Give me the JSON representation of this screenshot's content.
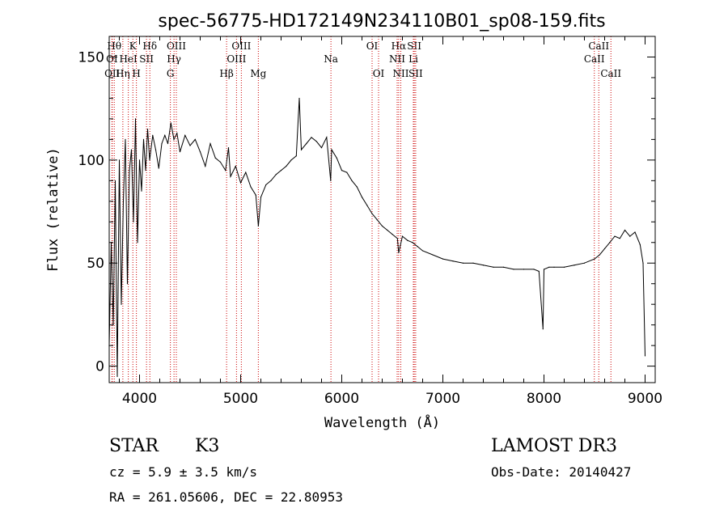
{
  "chart_data": {
    "type": "line",
    "title": "spec-56775-HD172149N234110B01_sp08-159.fits",
    "xlabel": "Wavelength (Å)",
    "ylabel": "Flux (relative)",
    "xlim": [
      3700,
      9100
    ],
    "ylim": [
      -8,
      160
    ],
    "xticks": [
      4000,
      5000,
      6000,
      7000,
      8000,
      9000
    ],
    "yticks": [
      0,
      50,
      100,
      150
    ],
    "series": [
      {
        "name": "flux",
        "x": [
          3700,
          3720,
          3740,
          3760,
          3780,
          3800,
          3820,
          3840,
          3860,
          3880,
          3900,
          3920,
          3940,
          3960,
          3980,
          4000,
          4020,
          4040,
          4060,
          4080,
          4100,
          4130,
          4160,
          4190,
          4220,
          4250,
          4280,
          4310,
          4340,
          4370,
          4400,
          4450,
          4500,
          4550,
          4600,
          4650,
          4700,
          4750,
          4800,
          4850,
          4880,
          4900,
          4950,
          5000,
          5050,
          5100,
          5150,
          5175,
          5200,
          5250,
          5300,
          5350,
          5400,
          5450,
          5500,
          5550,
          5580,
          5600,
          5650,
          5700,
          5750,
          5800,
          5850,
          5890,
          5900,
          5950,
          6000,
          6050,
          6100,
          6150,
          6200,
          6250,
          6300,
          6350,
          6400,
          6450,
          6500,
          6550,
          6563,
          6600,
          6650,
          6700,
          6750,
          6800,
          6900,
          7000,
          7100,
          7200,
          7300,
          7400,
          7500,
          7600,
          7700,
          7800,
          7900,
          7950,
          7990,
          8000,
          8050,
          8100,
          8200,
          8300,
          8400,
          8500,
          8550,
          8600,
          8650,
          8700,
          8750,
          8800,
          8850,
          8900,
          8950,
          8980,
          9000
        ],
        "values": [
          10,
          60,
          20,
          90,
          -5,
          100,
          30,
          80,
          110,
          40,
          95,
          105,
          70,
          120,
          60,
          100,
          85,
          110,
          95,
          115,
          100,
          112,
          105,
          96,
          108,
          112,
          108,
          118,
          110,
          113,
          104,
          112,
          107,
          110,
          104,
          97,
          108,
          101,
          99,
          95,
          106,
          92,
          97,
          89,
          94,
          87,
          83,
          68,
          82,
          88,
          90,
          93,
          95,
          97,
          100,
          102,
          130,
          105,
          108,
          111,
          109,
          106,
          111,
          90,
          105,
          101,
          95,
          94,
          90,
          87,
          82,
          78,
          74,
          71,
          68,
          66,
          64,
          62,
          55,
          63,
          61,
          60,
          58,
          56,
          54,
          52,
          51,
          50,
          50,
          49,
          48,
          48,
          47,
          47,
          47,
          46,
          18,
          47,
          48,
          48,
          48,
          49,
          50,
          52,
          54,
          57,
          60,
          63,
          62,
          66,
          63,
          65,
          59,
          50,
          5
        ]
      }
    ],
    "line_markers": [
      {
        "label": "OI",
        "x": 3727,
        "row": 1
      },
      {
        "label": "Hθ",
        "x": 3750,
        "row": 0
      },
      {
        "label": "OII",
        "x": 3730,
        "row": 2
      },
      {
        "label": "Hη",
        "x": 3835,
        "row": 2
      },
      {
        "label": "HeI",
        "x": 3889,
        "row": 1
      },
      {
        "label": "K",
        "x": 3934,
        "row": 0
      },
      {
        "label": "H",
        "x": 3969,
        "row": 2
      },
      {
        "label": "SII",
        "x": 4069,
        "row": 1
      },
      {
        "label": "Hδ",
        "x": 4102,
        "row": 0
      },
      {
        "label": "OIII",
        "x": 4364,
        "row": 0
      },
      {
        "label": "Hγ",
        "x": 4341,
        "row": 1
      },
      {
        "label": "G",
        "x": 4305,
        "row": 2
      },
      {
        "label": "Hβ",
        "x": 4861,
        "row": 2
      },
      {
        "label": "OIII",
        "x": 5007,
        "row": 0
      },
      {
        "label": "OIII",
        "x": 4959,
        "row": 1
      },
      {
        "label": "Mg",
        "x": 5175,
        "row": 2
      },
      {
        "label": "Na",
        "x": 5893,
        "row": 1
      },
      {
        "label": "OI",
        "x": 6300,
        "row": 0
      },
      {
        "label": "OI",
        "x": 6364,
        "row": 2
      },
      {
        "label": "Hα",
        "x": 6563,
        "row": 0
      },
      {
        "label": "NII",
        "x": 6548,
        "row": 1
      },
      {
        "label": "NII",
        "x": 6584,
        "row": 2
      },
      {
        "label": "SII",
        "x": 6717,
        "row": 0
      },
      {
        "label": "Li",
        "x": 6708,
        "row": 1
      },
      {
        "label": "SII",
        "x": 6731,
        "row": 2
      },
      {
        "label": "CaII",
        "x": 8542,
        "row": 0
      },
      {
        "label": "CaII",
        "x": 8498,
        "row": 1
      },
      {
        "label": "CaII",
        "x": 8662,
        "row": 2
      }
    ]
  },
  "info": {
    "object_class": "STAR",
    "subclass": "K3",
    "cz": "cz = 5.9 ± 3.5 km/s",
    "coords": "RA = 261.05606, DEC =  22.80953",
    "survey": "LAMOST DR3",
    "obs_date": "Obs-Date: 20140427"
  },
  "colors": {
    "marker_line": "#cc0000",
    "spectrum": "#000000"
  }
}
